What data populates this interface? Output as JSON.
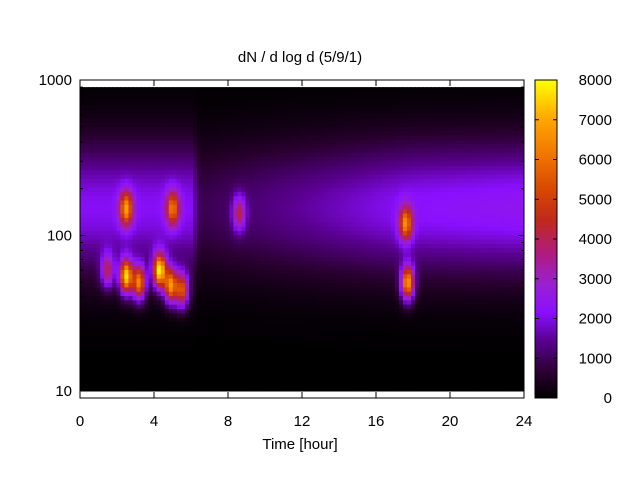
{
  "chart_data": {
    "type": "heatmap",
    "title": "dN / d log d (5/9/1)",
    "xlabel": "Time [hour]",
    "ylabel": "",
    "x_range": [
      0,
      24
    ],
    "y_range": [
      9,
      1000
    ],
    "y_scale": "log",
    "x_ticks": [
      "0",
      "4",
      "8",
      "12",
      "16",
      "20",
      "24"
    ],
    "y_ticks": [
      "10",
      "100",
      "1000"
    ],
    "colorbar": {
      "range": [
        0,
        8000
      ],
      "ticks": [
        "0",
        "1000",
        "2000",
        "3000",
        "4000",
        "5000",
        "6000",
        "7000",
        "8000"
      ]
    },
    "colormap": "black-purple-red-orange-yellow",
    "data_extent": {
      "x": [
        0,
        24
      ],
      "y": [
        10,
        900
      ]
    },
    "baseline": [
      {
        "time": 0,
        "level": 2100
      },
      {
        "time": 6,
        "level": 2100
      },
      {
        "time": 6.5,
        "level": 900
      },
      {
        "time": 12,
        "level": 1500
      },
      {
        "time": 18,
        "level": 2200
      },
      {
        "time": 24,
        "level": 2400
      }
    ],
    "hotspots": [
      {
        "time": 1.5,
        "diameter": 60,
        "value": 3500
      },
      {
        "time": 2.5,
        "diameter": 55,
        "value": 7200
      },
      {
        "time": 2.5,
        "diameter": 150,
        "value": 5500
      },
      {
        "time": 3.2,
        "diameter": 50,
        "value": 6000
      },
      {
        "time": 4.3,
        "diameter": 60,
        "value": 7500
      },
      {
        "time": 4.9,
        "diameter": 48,
        "value": 6200
      },
      {
        "time": 5.0,
        "diameter": 150,
        "value": 4800
      },
      {
        "time": 5.5,
        "diameter": 45,
        "value": 5200
      },
      {
        "time": 8.6,
        "diameter": 140,
        "value": 3400
      },
      {
        "time": 17.6,
        "diameter": 120,
        "value": 5200
      },
      {
        "time": 17.7,
        "diameter": 50,
        "value": 6500
      }
    ]
  }
}
